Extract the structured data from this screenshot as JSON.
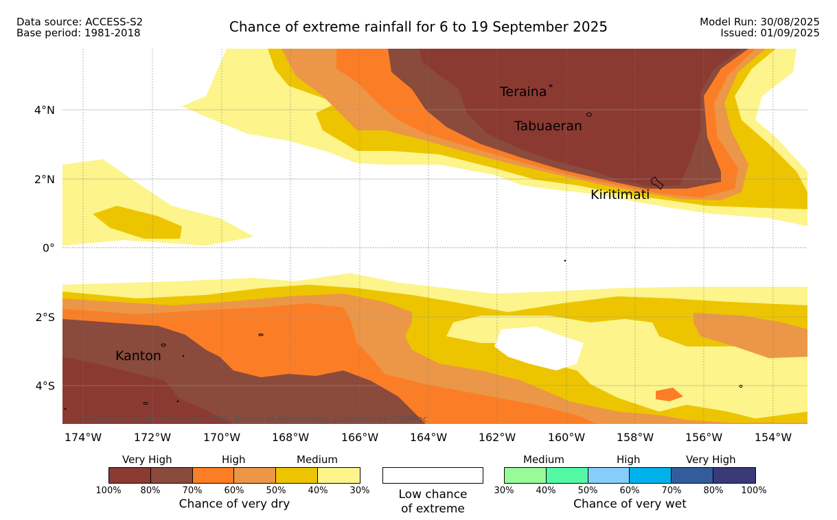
{
  "header": {
    "data_source": "Data source: ACCESS-S2",
    "base_period": "Base period: 1981-2018",
    "title": "Chance of extreme rainfall for 6 to 19 September 2025",
    "model_run": "Model Run: 30/08/2025",
    "issued": "Issued: 01/09/2025"
  },
  "map": {
    "lat_labels": [
      "4°N",
      "2°N",
      "0°",
      "2°S",
      "4°S"
    ],
    "lon_labels": [
      "174°W",
      "172°W",
      "170°W",
      "168°W",
      "166°W",
      "164°W",
      "162°W",
      "160°W",
      "158°W",
      "156°W",
      "154°W"
    ],
    "places": [
      "Teraina",
      "Tabuaeran",
      "Kiritimati",
      "Kanton"
    ],
    "copyright": "© Commonwealth of Australia 2025, Bureau of Meteorology, supported by COSPPac"
  },
  "colors": {
    "dry_100_80": "#8b3a32",
    "dry_80_70": "#8a4a3c",
    "dry_70_60": "#fb7e26",
    "dry_60_50": "#ec9747",
    "dry_50_40": "#ecc500",
    "dry_40_30": "#fdf48b",
    "wet_30_40": "#98fb98",
    "wet_40_50": "#55f9a5",
    "wet_50_60": "#87cdf9",
    "wet_60_70": "#00b2eb",
    "wet_70_80": "#335d9a",
    "wet_80_100": "#3b3a79"
  },
  "legend": {
    "dry": {
      "levels": [
        "Very High",
        "High",
        "Medium"
      ],
      "ticks": [
        "100%",
        "80%",
        "70%",
        "60%",
        "50%",
        "40%",
        "30%"
      ],
      "title": "Chance of very dry"
    },
    "low": {
      "line1": "Low chance",
      "line2": "of extreme"
    },
    "wet": {
      "levels": [
        "Medium",
        "High",
        "Very High"
      ],
      "ticks": [
        "30%",
        "40%",
        "50%",
        "60%",
        "70%",
        "80%",
        "100%"
      ],
      "title": "Chance of very wet"
    }
  }
}
